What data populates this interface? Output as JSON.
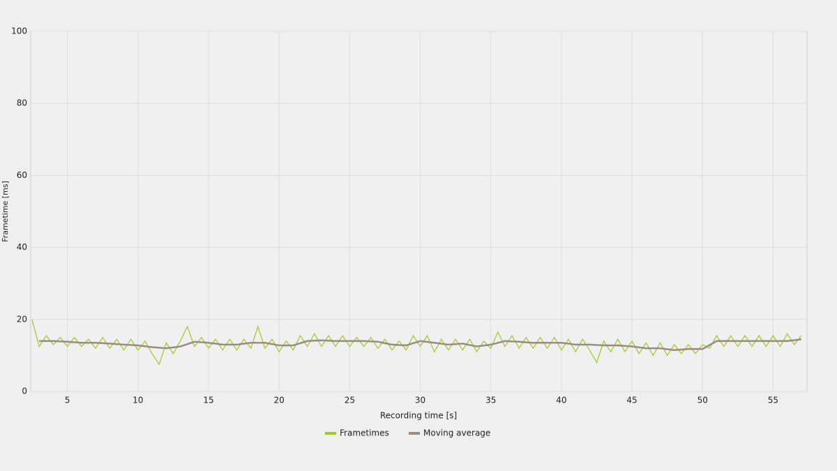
{
  "chart_data": {
    "type": "line",
    "xlabel": "Recording time [s]",
    "ylabel": "Frametime [ms]",
    "xlim": [
      2.4,
      57.4
    ],
    "ylim": [
      0,
      100
    ],
    "xticks": [
      5,
      10,
      15,
      20,
      25,
      30,
      35,
      40,
      45,
      50,
      55
    ],
    "yticks": [
      0,
      20,
      40,
      60,
      80,
      100
    ],
    "grid": true,
    "legend": "bottom",
    "series": [
      {
        "name": "Frametimes",
        "color": "#99cc1f",
        "x": [
          2.5,
          3,
          3.5,
          4,
          4.5,
          5,
          5.5,
          6,
          6.5,
          7,
          7.5,
          8,
          8.5,
          9,
          9.5,
          10,
          10.5,
          11,
          11.5,
          12,
          12.5,
          13,
          13.5,
          14,
          14.5,
          15,
          15.5,
          16,
          16.5,
          17,
          17.5,
          18,
          18.5,
          19,
          19.5,
          20,
          20.5,
          21,
          21.5,
          22,
          22.5,
          23,
          23.5,
          24,
          24.5,
          25,
          25.5,
          26,
          26.5,
          27,
          27.5,
          28,
          28.5,
          29,
          29.5,
          30,
          30.5,
          31,
          31.5,
          32,
          32.5,
          33,
          33.5,
          34,
          34.5,
          35,
          35.5,
          36,
          36.5,
          37,
          37.5,
          38,
          38.5,
          39,
          39.5,
          40,
          40.5,
          41,
          41.5,
          42,
          42.5,
          43,
          43.5,
          44,
          44.5,
          45,
          45.5,
          46,
          46.5,
          47,
          47.5,
          48,
          48.5,
          49,
          49.5,
          50,
          50.5,
          51,
          51.5,
          52,
          52.5,
          53,
          53.5,
          54,
          54.5,
          55,
          55.5,
          56,
          56.5,
          57
        ],
        "values": [
          20,
          12.5,
          15.5,
          13,
          15,
          12.5,
          15,
          12.5,
          14.5,
          12,
          15,
          12,
          14.5,
          11.5,
          14.5,
          11.5,
          14,
          10.5,
          7.5,
          13.5,
          10.5,
          14,
          18,
          12.5,
          15,
          12,
          14.5,
          11.5,
          14.5,
          11.5,
          14.5,
          12,
          18,
          12,
          14.5,
          11,
          14,
          11.5,
          15.5,
          12.5,
          16,
          12.5,
          15.5,
          12.5,
          15.5,
          12.5,
          15,
          12.5,
          15,
          12,
          14.5,
          11.5,
          14,
          11.5,
          15.5,
          12.5,
          15.5,
          11,
          14.5,
          11.5,
          14.5,
          11.5,
          14.5,
          11,
          14,
          12,
          16.5,
          12.5,
          15.5,
          12,
          15,
          12,
          15,
          12,
          15,
          11.5,
          14.5,
          11,
          14.5,
          11.5,
          8,
          14,
          11,
          14.5,
          11,
          14,
          10.5,
          13.5,
          10,
          13.5,
          10,
          13,
          10.5,
          13,
          10.5,
          13,
          12,
          15.5,
          12.5,
          15.5,
          12.5,
          15.5,
          12.5,
          15.5,
          12.5,
          15.5,
          12.5,
          16,
          13,
          15.5
        ]
      },
      {
        "name": "Moving average",
        "color": "#9a8c84",
        "x": [
          3,
          4,
          5,
          6,
          7,
          8,
          9,
          10,
          11,
          12,
          13,
          14,
          15,
          16,
          17,
          18,
          19,
          20,
          21,
          22,
          23,
          24,
          25,
          26,
          27,
          28,
          29,
          30,
          31,
          32,
          33,
          34,
          35,
          36,
          37,
          38,
          39,
          40,
          41,
          42,
          43,
          44,
          45,
          46,
          47,
          48,
          49,
          50,
          51,
          52,
          53,
          54,
          55,
          56,
          57
        ],
        "values": [
          14,
          14,
          13.8,
          13.5,
          13.5,
          13.3,
          13,
          12.8,
          12.3,
          12,
          12.5,
          13.8,
          13.5,
          13,
          13,
          13.5,
          13.5,
          12.8,
          12.8,
          14,
          14.2,
          14,
          14,
          14,
          13.8,
          13,
          12.8,
          14,
          13.5,
          13,
          13.3,
          12.5,
          13,
          14,
          13.8,
          13.5,
          13.5,
          13.5,
          13,
          13,
          12.8,
          12.8,
          12.5,
          12,
          12,
          11.5,
          11.8,
          11.8,
          14,
          14,
          14,
          14,
          14,
          14,
          14.5
        ]
      }
    ]
  }
}
